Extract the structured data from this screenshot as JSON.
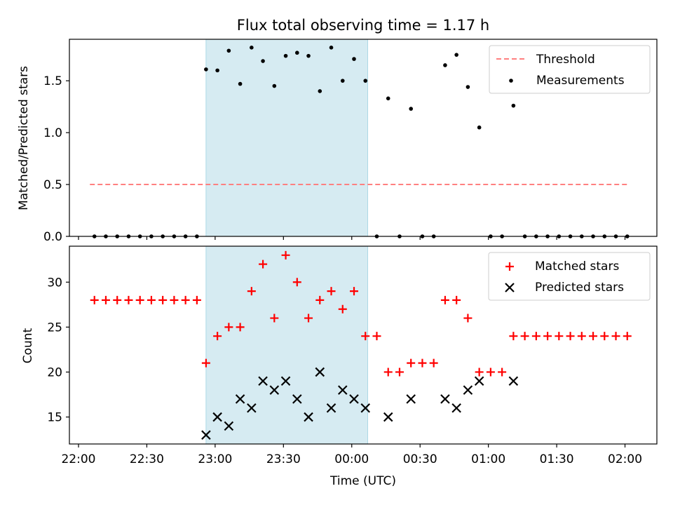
{
  "title": "Flux total observing time = 1.17 h",
  "xlabel": "Time (UTC)",
  "chart_data": [
    {
      "type": "scatter",
      "ylabel": "Matched/Predicted stars",
      "ylim": [
        0,
        1.9
      ],
      "xlim": [
        "21:56",
        "02:14"
      ],
      "yticks": [
        0.0,
        0.5,
        1.0,
        1.5
      ],
      "ytick_labels": [
        "0.0",
        "0.5",
        "1.0",
        "1.5"
      ],
      "legend_position": "top-right",
      "shaded_span": [
        "22:56",
        "00:07"
      ],
      "threshold": {
        "name": "Threshold",
        "y": 0.5,
        "x_start": "22:05",
        "x_end": "02:01",
        "color": "#ff8080"
      },
      "series": [
        {
          "name": "Measurements",
          "color": "#000000",
          "points": [
            [
              "22:07",
              0
            ],
            [
              "22:12",
              0
            ],
            [
              "22:17",
              0
            ],
            [
              "22:22",
              0
            ],
            [
              "22:27",
              0
            ],
            [
              "22:32",
              0
            ],
            [
              "22:37",
              0
            ],
            [
              "22:42",
              0
            ],
            [
              "22:47",
              0
            ],
            [
              "22:52",
              0
            ],
            [
              "22:56",
              1.61
            ],
            [
              "23:01",
              1.6
            ],
            [
              "23:06",
              1.79
            ],
            [
              "23:11",
              1.47
            ],
            [
              "23:16",
              1.82
            ],
            [
              "23:21",
              1.69
            ],
            [
              "23:26",
              1.45
            ],
            [
              "23:31",
              1.74
            ],
            [
              "23:36",
              1.77
            ],
            [
              "23:41",
              1.74
            ],
            [
              "23:46",
              1.4
            ],
            [
              "23:51",
              1.82
            ],
            [
              "23:56",
              1.5
            ],
            [
              "00:01",
              1.71
            ],
            [
              "00:06",
              1.5
            ],
            [
              "00:11",
              0
            ],
            [
              "00:16",
              1.33
            ],
            [
              "00:21",
              0
            ],
            [
              "00:26",
              1.23
            ],
            [
              "00:31",
              0
            ],
            [
              "00:36",
              0
            ],
            [
              "00:41",
              1.65
            ],
            [
              "00:46",
              1.75
            ],
            [
              "00:51",
              1.44
            ],
            [
              "00:56",
              1.05
            ],
            [
              "01:01",
              0
            ],
            [
              "01:06",
              0
            ],
            [
              "01:11",
              1.26
            ],
            [
              "01:16",
              0
            ],
            [
              "01:21",
              0
            ],
            [
              "01:26",
              0
            ],
            [
              "01:31",
              0
            ],
            [
              "01:36",
              0
            ],
            [
              "01:41",
              0
            ],
            [
              "01:46",
              0
            ],
            [
              "01:51",
              0
            ],
            [
              "01:56",
              0
            ],
            [
              "02:01",
              0
            ]
          ]
        }
      ]
    },
    {
      "type": "scatter",
      "ylabel": "Count",
      "ylim": [
        12,
        34
      ],
      "xlim": [
        "21:56",
        "02:14"
      ],
      "yticks": [
        15,
        20,
        25,
        30
      ],
      "ytick_labels": [
        "15",
        "20",
        "25",
        "30"
      ],
      "xticks": [
        "22:00",
        "22:30",
        "23:00",
        "23:30",
        "00:00",
        "00:30",
        "01:00",
        "01:30",
        "02:00"
      ],
      "legend_position": "top-right",
      "shaded_span": [
        "22:56",
        "00:07"
      ],
      "series": [
        {
          "name": "Matched stars",
          "marker": "plus",
          "color": "#ff0000",
          "points": [
            [
              "22:07",
              28
            ],
            [
              "22:12",
              28
            ],
            [
              "22:17",
              28
            ],
            [
              "22:22",
              28
            ],
            [
              "22:27",
              28
            ],
            [
              "22:32",
              28
            ],
            [
              "22:37",
              28
            ],
            [
              "22:42",
              28
            ],
            [
              "22:47",
              28
            ],
            [
              "22:52",
              28
            ],
            [
              "22:56",
              21
            ],
            [
              "23:01",
              24
            ],
            [
              "23:06",
              25
            ],
            [
              "23:11",
              25
            ],
            [
              "23:16",
              29
            ],
            [
              "23:21",
              32
            ],
            [
              "23:26",
              26
            ],
            [
              "23:31",
              33
            ],
            [
              "23:36",
              30
            ],
            [
              "23:41",
              26
            ],
            [
              "23:46",
              28
            ],
            [
              "23:51",
              29
            ],
            [
              "23:56",
              27
            ],
            [
              "00:01",
              29
            ],
            [
              "00:06",
              24
            ],
            [
              "00:11",
              24
            ],
            [
              "00:16",
              20
            ],
            [
              "00:21",
              20
            ],
            [
              "00:26",
              21
            ],
            [
              "00:31",
              21
            ],
            [
              "00:36",
              21
            ],
            [
              "00:41",
              28
            ],
            [
              "00:46",
              28
            ],
            [
              "00:51",
              26
            ],
            [
              "00:56",
              20
            ],
            [
              "01:01",
              20
            ],
            [
              "01:06",
              20
            ],
            [
              "01:11",
              24
            ],
            [
              "01:16",
              24
            ],
            [
              "01:21",
              24
            ],
            [
              "01:26",
              24
            ],
            [
              "01:31",
              24
            ],
            [
              "01:36",
              24
            ],
            [
              "01:41",
              24
            ],
            [
              "01:46",
              24
            ],
            [
              "01:51",
              24
            ],
            [
              "01:56",
              24
            ],
            [
              "02:01",
              24
            ]
          ]
        },
        {
          "name": "Predicted stars",
          "marker": "x",
          "color": "#000000",
          "points": [
            [
              "22:56",
              13
            ],
            [
              "23:01",
              15
            ],
            [
              "23:06",
              14
            ],
            [
              "23:11",
              17
            ],
            [
              "23:16",
              16
            ],
            [
              "23:21",
              19
            ],
            [
              "23:26",
              18
            ],
            [
              "23:31",
              19
            ],
            [
              "23:36",
              17
            ],
            [
              "23:41",
              15
            ],
            [
              "23:46",
              20
            ],
            [
              "23:51",
              16
            ],
            [
              "23:56",
              18
            ],
            [
              "00:01",
              17
            ],
            [
              "00:06",
              16
            ],
            [
              "00:16",
              15
            ],
            [
              "00:26",
              17
            ],
            [
              "00:41",
              17
            ],
            [
              "00:46",
              16
            ],
            [
              "00:51",
              18
            ],
            [
              "00:56",
              19
            ],
            [
              "01:11",
              19
            ]
          ]
        }
      ]
    }
  ]
}
